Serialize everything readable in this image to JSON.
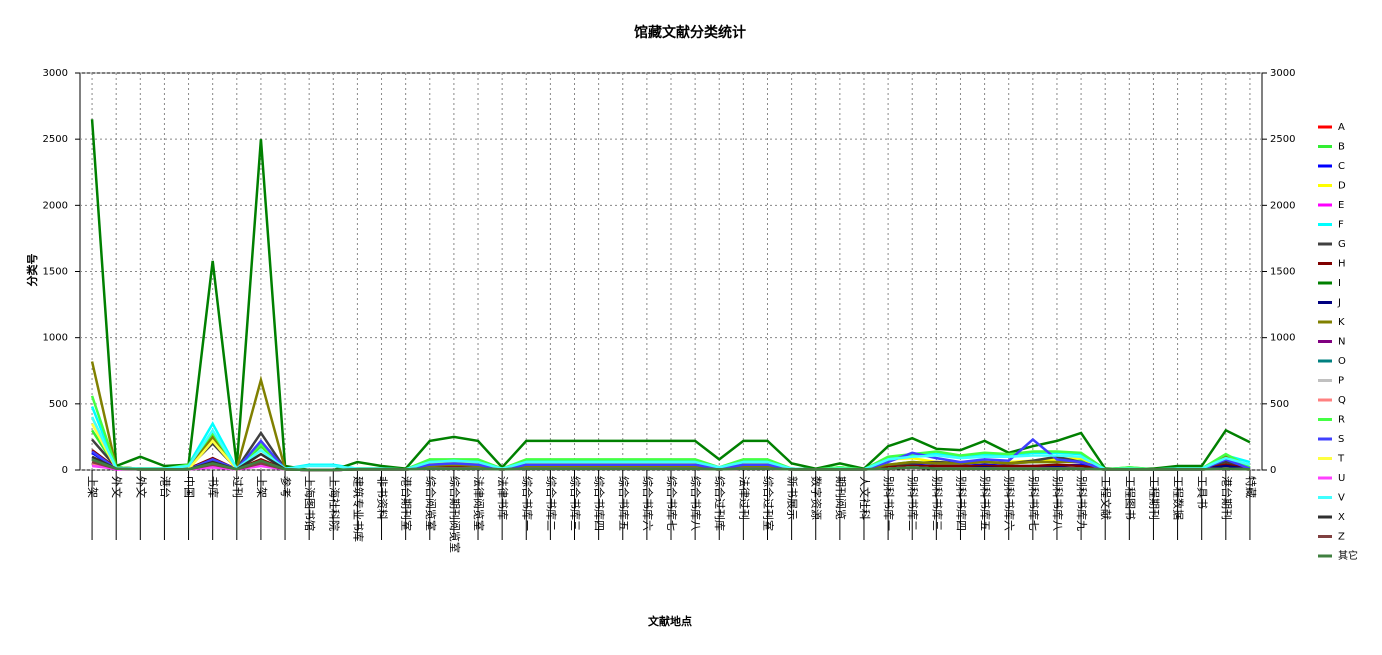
{
  "chart_data": {
    "type": "line",
    "title": "馆藏文献分类统计",
    "x_label": "文献地点",
    "y_label": "分类号",
    "categories": [
      "上架",
      "外文",
      "外文",
      "港台",
      "中国",
      "书库",
      "过刊",
      "上架",
      "参考",
      "上海图书馆",
      "上海社科院",
      "建筑专业书库",
      "非书资料",
      "港台期刊室",
      "综合阅览室",
      "综合期刊阅览室",
      "法律阅览室",
      "法律书库",
      "综合书库一",
      "综合书库二",
      "综合书库三",
      "综合书库四",
      "综合书库五",
      "综合书库六",
      "综合书库七",
      "综合书库八",
      "综合过刊库",
      "法律过刊",
      "综合过刊室",
      "新书展示",
      "数字资源",
      "期刊阅览",
      "人文社科",
      "别科书库一",
      "别科书库二",
      "别科书库三",
      "别科书库四",
      "别科书库五",
      "别科书库六",
      "别科书库七",
      "别科书库八",
      "别科书库九",
      "工程文献",
      "工程图书",
      "工程期刊",
      "工程数据",
      "工具书",
      "港台期刊",
      "特藏"
    ],
    "ylim": [
      0,
      3000
    ],
    "yticks": [
      0,
      500,
      1000,
      1500,
      2000,
      2500,
      3000
    ],
    "y2lim": [
      0,
      3000
    ],
    "y2ticks": [
      0,
      500,
      1000,
      1500,
      2000,
      2500,
      3000
    ],
    "grid": true,
    "series": [
      {
        "name": "A",
        "color": "#ff0000",
        "values": [
          50,
          10,
          5,
          5,
          5,
          60,
          5,
          40,
          5,
          0,
          0,
          5,
          5,
          5,
          10,
          10,
          10,
          5,
          10,
          10,
          10,
          10,
          10,
          10,
          10,
          10,
          5,
          10,
          10,
          5,
          5,
          5,
          5,
          10,
          20,
          10,
          10,
          10,
          10,
          10,
          10,
          10,
          5,
          5,
          5,
          5,
          5,
          10,
          5
        ]
      },
      {
        "name": "B",
        "color": "#33ee33",
        "values": [
          300,
          20,
          10,
          10,
          20,
          250,
          10,
          180,
          10,
          0,
          0,
          10,
          10,
          5,
          60,
          70,
          60,
          10,
          60,
          60,
          60,
          60,
          60,
          60,
          60,
          60,
          20,
          60,
          60,
          10,
          5,
          20,
          5,
          40,
          60,
          50,
          50,
          60,
          50,
          60,
          60,
          70,
          5,
          20,
          5,
          10,
          10,
          60,
          20
        ]
      },
      {
        "name": "C",
        "color": "#0000ff",
        "values": [
          130,
          10,
          5,
          5,
          5,
          50,
          5,
          60,
          5,
          0,
          0,
          5,
          5,
          5,
          30,
          40,
          30,
          5,
          30,
          30,
          30,
          30,
          30,
          30,
          30,
          30,
          10,
          30,
          30,
          5,
          5,
          5,
          5,
          20,
          40,
          30,
          30,
          40,
          30,
          30,
          30,
          40,
          5,
          5,
          5,
          5,
          5,
          40,
          10
        ]
      },
      {
        "name": "D",
        "color": "#ffff00",
        "values": [
          400,
          20,
          10,
          10,
          20,
          250,
          10,
          200,
          10,
          0,
          0,
          10,
          10,
          5,
          50,
          60,
          50,
          10,
          50,
          50,
          50,
          50,
          50,
          50,
          50,
          50,
          20,
          50,
          50,
          10,
          5,
          20,
          5,
          80,
          90,
          60,
          60,
          70,
          60,
          70,
          80,
          90,
          5,
          10,
          5,
          5,
          10,
          50,
          10
        ]
      },
      {
        "name": "E",
        "color": "#ff00ff",
        "values": [
          40,
          5,
          5,
          5,
          5,
          30,
          5,
          50,
          5,
          0,
          0,
          5,
          5,
          5,
          10,
          10,
          10,
          5,
          10,
          10,
          10,
          10,
          10,
          10,
          10,
          10,
          5,
          10,
          10,
          5,
          5,
          5,
          5,
          10,
          20,
          10,
          10,
          10,
          10,
          10,
          10,
          10,
          5,
          5,
          5,
          5,
          5,
          20,
          5
        ]
      },
      {
        "name": "F",
        "color": "#00ffff",
        "values": [
          480,
          20,
          10,
          10,
          40,
          350,
          10,
          150,
          10,
          40,
          40,
          10,
          10,
          5,
          70,
          80,
          70,
          10,
          70,
          70,
          70,
          70,
          70,
          70,
          70,
          70,
          20,
          70,
          70,
          10,
          5,
          20,
          5,
          90,
          110,
          120,
          100,
          120,
          110,
          130,
          130,
          120,
          5,
          10,
          5,
          10,
          10,
          110,
          60
        ]
      },
      {
        "name": "G",
        "color": "#404040",
        "values": [
          230,
          20,
          10,
          10,
          20,
          200,
          10,
          280,
          10,
          0,
          0,
          10,
          10,
          5,
          40,
          40,
          40,
          10,
          40,
          40,
          40,
          40,
          40,
          40,
          40,
          40,
          10,
          40,
          40,
          10,
          5,
          10,
          5,
          30,
          50,
          60,
          50,
          60,
          50,
          70,
          100,
          60,
          5,
          10,
          5,
          10,
          10,
          60,
          10
        ]
      },
      {
        "name": "H",
        "color": "#800000",
        "values": [
          150,
          15,
          10,
          5,
          10,
          90,
          5,
          80,
          5,
          0,
          0,
          5,
          5,
          5,
          20,
          20,
          20,
          5,
          20,
          20,
          20,
          20,
          20,
          20,
          20,
          20,
          10,
          20,
          20,
          5,
          5,
          5,
          5,
          20,
          30,
          30,
          30,
          30,
          30,
          30,
          40,
          30,
          5,
          5,
          5,
          5,
          5,
          40,
          10
        ]
      },
      {
        "name": "I",
        "color": "#008000",
        "values": [
          2650,
          30,
          100,
          30,
          40,
          1580,
          30,
          2500,
          30,
          0,
          0,
          60,
          30,
          10,
          220,
          250,
          220,
          20,
          220,
          220,
          220,
          220,
          220,
          220,
          220,
          220,
          80,
          220,
          220,
          50,
          10,
          50,
          10,
          180,
          240,
          160,
          150,
          220,
          130,
          180,
          220,
          280,
          10,
          10,
          10,
          30,
          30,
          300,
          210
        ]
      },
      {
        "name": "J",
        "color": "#000080",
        "values": [
          80,
          10,
          5,
          5,
          5,
          40,
          5,
          60,
          5,
          0,
          0,
          5,
          5,
          5,
          10,
          10,
          10,
          5,
          10,
          10,
          10,
          10,
          10,
          10,
          10,
          10,
          5,
          10,
          10,
          5,
          5,
          5,
          5,
          10,
          20,
          10,
          10,
          20,
          10,
          10,
          20,
          10,
          5,
          5,
          5,
          5,
          5,
          30,
          5
        ]
      },
      {
        "name": "K",
        "color": "#808000",
        "values": [
          820,
          20,
          10,
          10,
          20,
          250,
          10,
          680,
          10,
          0,
          0,
          10,
          10,
          5,
          30,
          40,
          30,
          5,
          30,
          30,
          30,
          30,
          30,
          30,
          30,
          30,
          10,
          30,
          30,
          5,
          5,
          10,
          5,
          40,
          60,
          50,
          50,
          60,
          50,
          60,
          60,
          60,
          5,
          10,
          5,
          5,
          10,
          100,
          10
        ]
      },
      {
        "name": "N",
        "color": "#800080",
        "values": [
          60,
          10,
          5,
          5,
          5,
          40,
          5,
          60,
          5,
          0,
          0,
          5,
          5,
          5,
          10,
          10,
          10,
          5,
          10,
          10,
          10,
          10,
          10,
          10,
          10,
          10,
          5,
          10,
          10,
          5,
          5,
          5,
          5,
          10,
          20,
          10,
          10,
          10,
          10,
          10,
          10,
          10,
          5,
          5,
          5,
          5,
          5,
          10,
          5
        ]
      },
      {
        "name": "O",
        "color": "#008080",
        "values": [
          40,
          10,
          5,
          5,
          5,
          30,
          5,
          40,
          5,
          0,
          0,
          5,
          5,
          5,
          10,
          10,
          10,
          5,
          10,
          10,
          10,
          10,
          10,
          10,
          10,
          10,
          5,
          10,
          10,
          5,
          5,
          5,
          5,
          10,
          20,
          10,
          10,
          10,
          10,
          10,
          10,
          10,
          5,
          5,
          5,
          5,
          5,
          10,
          5
        ]
      },
      {
        "name": "P",
        "color": "#c0c0c0",
        "values": [
          70,
          10,
          5,
          5,
          5,
          50,
          5,
          60,
          5,
          0,
          0,
          5,
          5,
          5,
          10,
          10,
          10,
          5,
          10,
          10,
          10,
          10,
          10,
          10,
          10,
          10,
          5,
          10,
          10,
          5,
          5,
          5,
          5,
          10,
          20,
          10,
          10,
          10,
          10,
          10,
          10,
          10,
          5,
          5,
          5,
          5,
          5,
          10,
          5
        ]
      },
      {
        "name": "Q",
        "color": "#ff8080",
        "values": [
          50,
          10,
          5,
          5,
          5,
          40,
          5,
          50,
          5,
          0,
          0,
          5,
          5,
          5,
          10,
          10,
          10,
          5,
          10,
          10,
          10,
          10,
          10,
          10,
          10,
          10,
          5,
          10,
          10,
          5,
          5,
          5,
          5,
          10,
          20,
          10,
          10,
          10,
          10,
          10,
          10,
          10,
          5,
          5,
          5,
          5,
          5,
          10,
          5
        ]
      },
      {
        "name": "R",
        "color": "#44ff44",
        "values": [
          560,
          20,
          10,
          10,
          40,
          280,
          10,
          200,
          10,
          0,
          0,
          10,
          10,
          5,
          80,
          80,
          80,
          10,
          80,
          80,
          80,
          80,
          80,
          80,
          80,
          80,
          20,
          80,
          80,
          10,
          5,
          20,
          5,
          100,
          120,
          140,
          110,
          130,
          120,
          140,
          140,
          130,
          5,
          20,
          5,
          10,
          10,
          120,
          20
        ]
      },
      {
        "name": "S",
        "color": "#4040ff",
        "values": [
          140,
          10,
          5,
          5,
          5,
          80,
          5,
          220,
          5,
          0,
          0,
          5,
          5,
          5,
          40,
          50,
          40,
          5,
          40,
          40,
          40,
          40,
          40,
          40,
          40,
          40,
          10,
          40,
          40,
          5,
          5,
          5,
          5,
          60,
          130,
          90,
          60,
          80,
          70,
          230,
          80,
          60,
          5,
          5,
          5,
          5,
          5,
          80,
          10
        ]
      },
      {
        "name": "T",
        "color": "#ffff40",
        "values": [
          350,
          10,
          5,
          5,
          5,
          220,
          5,
          150,
          5,
          0,
          0,
          5,
          5,
          5,
          10,
          10,
          10,
          5,
          10,
          10,
          10,
          10,
          10,
          10,
          10,
          10,
          5,
          10,
          10,
          5,
          5,
          5,
          5,
          10,
          20,
          10,
          10,
          10,
          10,
          10,
          10,
          10,
          5,
          5,
          5,
          5,
          5,
          10,
          5
        ]
      },
      {
        "name": "U",
        "color": "#ff40ff",
        "values": [
          30,
          10,
          5,
          5,
          5,
          20,
          5,
          30,
          5,
          0,
          0,
          5,
          5,
          5,
          10,
          10,
          10,
          5,
          10,
          10,
          10,
          10,
          10,
          10,
          10,
          10,
          5,
          10,
          10,
          5,
          5,
          5,
          5,
          10,
          20,
          10,
          10,
          10,
          10,
          10,
          10,
          10,
          5,
          5,
          5,
          5,
          5,
          10,
          5
        ]
      },
      {
        "name": "V",
        "color": "#40ffff",
        "values": [
          400,
          15,
          10,
          10,
          30,
          300,
          10,
          150,
          10,
          30,
          30,
          10,
          10,
          5,
          60,
          70,
          60,
          10,
          60,
          60,
          60,
          60,
          60,
          60,
          60,
          60,
          20,
          60,
          60,
          10,
          5,
          10,
          5,
          80,
          100,
          110,
          90,
          100,
          100,
          110,
          110,
          100,
          5,
          10,
          5,
          10,
          10,
          90,
          40
        ]
      },
      {
        "name": "X",
        "color": "#303030",
        "values": [
          100,
          10,
          5,
          5,
          5,
          60,
          5,
          120,
          5,
          0,
          0,
          5,
          5,
          5,
          10,
          10,
          10,
          5,
          10,
          10,
          10,
          10,
          10,
          10,
          10,
          10,
          5,
          10,
          10,
          5,
          5,
          5,
          5,
          10,
          20,
          10,
          10,
          10,
          10,
          10,
          10,
          10,
          5,
          5,
          5,
          5,
          5,
          10,
          5
        ]
      },
      {
        "name": "Z",
        "color": "#804040",
        "values": [
          60,
          10,
          5,
          5,
          5,
          40,
          5,
          50,
          5,
          0,
          0,
          5,
          5,
          5,
          10,
          10,
          10,
          5,
          10,
          10,
          10,
          10,
          10,
          10,
          10,
          10,
          5,
          10,
          10,
          5,
          5,
          5,
          5,
          10,
          20,
          10,
          10,
          10,
          10,
          10,
          10,
          10,
          5,
          5,
          5,
          5,
          5,
          10,
          5
        ]
      },
      {
        "name": "其它",
        "color": "#408040",
        "values": [
          80,
          10,
          5,
          5,
          5,
          50,
          5,
          70,
          5,
          0,
          0,
          5,
          5,
          5,
          10,
          10,
          10,
          5,
          10,
          10,
          10,
          10,
          10,
          10,
          10,
          10,
          5,
          10,
          10,
          5,
          5,
          5,
          5,
          10,
          20,
          10,
          10,
          10,
          10,
          10,
          10,
          10,
          5,
          5,
          5,
          5,
          5,
          10,
          5
        ]
      }
    ]
  }
}
